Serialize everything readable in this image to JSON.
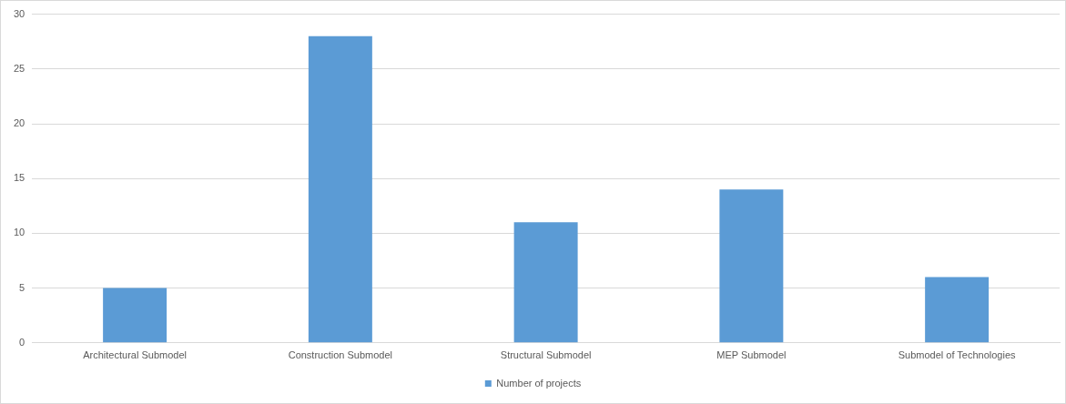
{
  "chart_data": {
    "type": "bar",
    "categories": [
      "Architectural Submodel",
      "Construction Submodel",
      "Structural Submodel",
      "MEP Submodel",
      "Submodel of Technologies"
    ],
    "series": [
      {
        "name": "Number of projects",
        "color": "#5b9bd5",
        "values": [
          5,
          28,
          11,
          14,
          6
        ]
      }
    ],
    "ylim": [
      0,
      30
    ],
    "yticks": [
      0,
      5,
      10,
      15,
      20,
      25,
      30
    ],
    "grid": "y",
    "legend": "bottom"
  }
}
